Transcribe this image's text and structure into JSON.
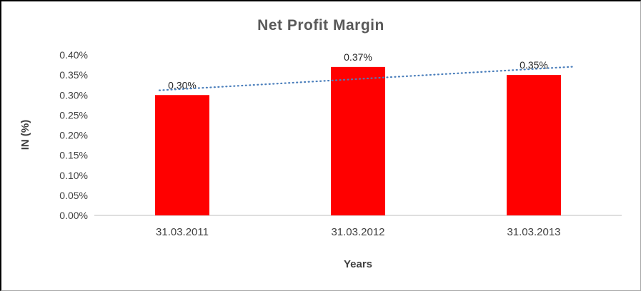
{
  "chart_data": {
    "type": "bar",
    "title": "Net Profit Margin",
    "xlabel": "Years",
    "ylabel": "IN (%)",
    "categories": [
      "31.03.2011",
      "31.03.2012",
      "31.03.2013"
    ],
    "values": [
      0.3,
      0.37,
      0.35
    ],
    "value_labels": [
      "0.30%",
      "0.37%",
      "0.35%"
    ],
    "ylim": [
      0,
      0.4
    ],
    "ytick_step": 0.05,
    "ytick_labels": [
      "0.00%",
      "0.05%",
      "0.10%",
      "0.15%",
      "0.20%",
      "0.25%",
      "0.30%",
      "0.35%",
      "0.40%"
    ],
    "grid": false,
    "legend": "none",
    "bar_color": "#ff0000",
    "axis_color": "#bfbfbf",
    "title_color": "#595959",
    "text_color": "#404040",
    "trendline": {
      "type": "linear",
      "style": "dotted",
      "color": "#4a7ebb",
      "values": [
        0.315,
        0.34,
        0.365
      ]
    }
  }
}
